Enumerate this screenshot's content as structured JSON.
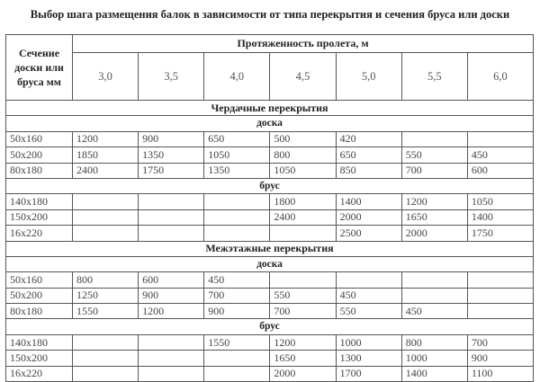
{
  "title": "Выбор шага размещения балок в зависимости от типа перекрытия и сечения бруса или доски",
  "header": {
    "section_label": "Сечение доски или бруса мм",
    "span_label": "Протяженность пролета, м",
    "spans": [
      "3,0",
      "3,5",
      "4,0",
      "4,5",
      "5,0",
      "5,5",
      "6,0"
    ]
  },
  "sections": [
    {
      "name": "Чердачные перекрытия",
      "groups": [
        {
          "name": "доска",
          "rows": [
            {
              "size": "50x160",
              "values": [
                "1200",
                "900",
                "650",
                "500",
                "420",
                "",
                ""
              ]
            },
            {
              "size": "50x200",
              "values": [
                "1850",
                "1350",
                "1050",
                "800",
                "650",
                "550",
                "450"
              ]
            },
            {
              "size": "80x180",
              "values": [
                "2400",
                "1750",
                "1350",
                "1050",
                "850",
                "700",
                "600"
              ]
            }
          ]
        },
        {
          "name": "брус",
          "rows": [
            {
              "size": "140x180",
              "values": [
                "",
                "",
                "",
                "1800",
                "1400",
                "1200",
                "1050"
              ]
            },
            {
              "size": "150x200",
              "values": [
                "",
                "",
                "",
                "2400",
                "2000",
                "1650",
                "1400"
              ]
            },
            {
              "size": "16x220",
              "values": [
                "",
                "",
                "",
                "",
                "2500",
                "2000",
                "1750"
              ]
            }
          ]
        }
      ]
    },
    {
      "name": "Межэтажные перекрытия",
      "groups": [
        {
          "name": "доска",
          "rows": [
            {
              "size": "50x160",
              "values": [
                "800",
                "600",
                "450",
                "",
                "",
                "",
                ""
              ]
            },
            {
              "size": "50x200",
              "values": [
                "1250",
                "900",
                "700",
                "550",
                "450",
                "",
                ""
              ]
            },
            {
              "size": "80x180",
              "values": [
                "1550",
                "1200",
                "900",
                "700",
                "550",
                "450",
                ""
              ]
            }
          ]
        },
        {
          "name": "брус",
          "rows": [
            {
              "size": "140x180",
              "values": [
                "",
                "",
                "1550",
                "1200",
                "1000",
                "800",
                "700"
              ]
            },
            {
              "size": "150x200",
              "values": [
                "",
                "",
                "",
                "1650",
                "1300",
                "1000",
                "900"
              ]
            },
            {
              "size": "16x220",
              "values": [
                "",
                "",
                "",
                "2000",
                "1700",
                "1400",
                "1100"
              ]
            }
          ]
        }
      ]
    }
  ]
}
